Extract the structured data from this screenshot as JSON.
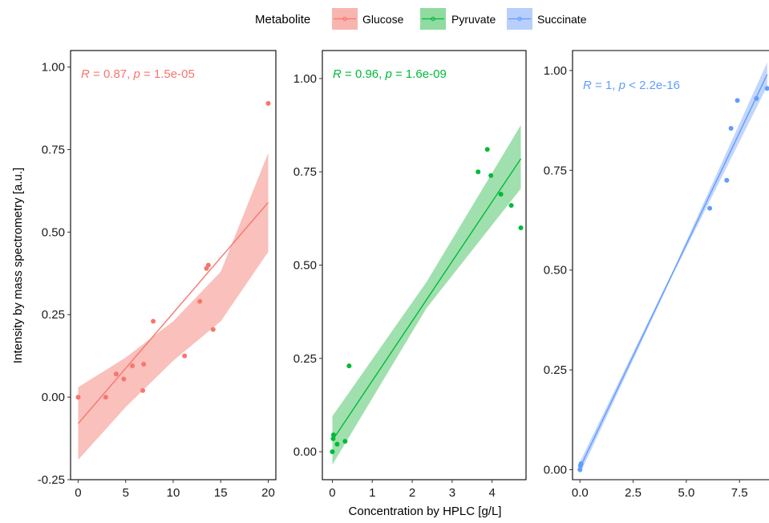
{
  "legend": {
    "title": "Metabolite",
    "items": [
      {
        "label": "Glucose",
        "color": "#F8766D",
        "fill": "#F8B5B0"
      },
      {
        "label": "Pyruvate",
        "color": "#00BA38",
        "fill": "#8FDBA0"
      },
      {
        "label": "Succinate",
        "color": "#619CFF",
        "fill": "#B7CFFA"
      }
    ]
  },
  "xlabel": "Concentration by HPLC [g/L]",
  "ylabel": "Intensity by mass spectrometry [a.u.]",
  "chart_data": [
    {
      "type": "scatter",
      "series": [
        {
          "name": "Glucose"
        }
      ],
      "color": "#F8766D",
      "band": "#F8B5B0",
      "annotation": {
        "r": "R = 0.87,",
        "p_label": "p",
        "p": "= 1.5e-05"
      },
      "xlim": [
        -0.8,
        20.8
      ],
      "ylim": [
        -0.25,
        1.05
      ],
      "xticks": [
        0,
        5,
        10,
        15,
        20
      ],
      "xtick_labels": [
        "0",
        "5",
        "10",
        "15",
        "20"
      ],
      "yticks": [
        -0.25,
        0,
        0.25,
        0.5,
        0.75,
        1.0
      ],
      "ytick_labels": [
        "-0.25",
        "0.00",
        "0.25",
        "0.50",
        "0.75",
        "1.00"
      ],
      "points": [
        [
          0.0,
          0.0
        ],
        [
          2.9,
          0.0
        ],
        [
          4.0,
          0.07
        ],
        [
          4.8,
          0.055
        ],
        [
          5.7,
          0.095
        ],
        [
          6.8,
          0.02
        ],
        [
          6.9,
          0.1
        ],
        [
          7.9,
          0.23
        ],
        [
          11.2,
          0.125
        ],
        [
          12.8,
          0.29
        ],
        [
          13.5,
          0.39
        ],
        [
          13.7,
          0.4
        ],
        [
          14.2,
          0.205
        ],
        [
          20.0,
          0.89
        ]
      ],
      "fit": {
        "x": [
          0,
          20
        ],
        "y": [
          -0.08,
          0.59
        ]
      },
      "ci": {
        "x": [
          0,
          5,
          10,
          15,
          20
        ],
        "lo": [
          -0.19,
          -0.03,
          0.11,
          0.23,
          0.44
        ],
        "hi": [
          0.03,
          0.12,
          0.23,
          0.38,
          0.74
        ]
      }
    },
    {
      "type": "scatter",
      "series": [
        {
          "name": "Pyruvate"
        }
      ],
      "color": "#00BA38",
      "band": "#8FDBA0",
      "annotation": {
        "r": "R = 0.96,",
        "p_label": "p",
        "p": "= 1.6e-09"
      },
      "xlim": [
        -0.25,
        4.85
      ],
      "ylim": [
        -0.075,
        1.075
      ],
      "xticks": [
        0,
        1,
        2,
        3,
        4
      ],
      "xtick_labels": [
        "0",
        "1",
        "2",
        "3",
        "4"
      ],
      "yticks": [
        0,
        0.25,
        0.5,
        0.75,
        1.0
      ],
      "ytick_labels": [
        "0.00",
        "0.25",
        "0.50",
        "0.75",
        "1.00"
      ],
      "points": [
        [
          0.0,
          0.0
        ],
        [
          0.02,
          0.035
        ],
        [
          0.03,
          0.045
        ],
        [
          0.12,
          0.02
        ],
        [
          0.32,
          0.028
        ],
        [
          0.42,
          0.23
        ],
        [
          3.65,
          0.75
        ],
        [
          3.88,
          0.81
        ],
        [
          3.97,
          0.74
        ],
        [
          4.22,
          0.69
        ],
        [
          4.48,
          0.66
        ],
        [
          4.72,
          0.6
        ]
      ],
      "fit": {
        "x": [
          0,
          4.72
        ],
        "y": [
          0.03,
          0.785
        ]
      },
      "ci": {
        "x": [
          0,
          2.36,
          4.72
        ],
        "lo": [
          -0.035,
          0.385,
          0.705
        ],
        "hi": [
          0.095,
          0.455,
          0.875
        ]
      }
    },
    {
      "type": "scatter",
      "series": [
        {
          "name": "Succinate"
        }
      ],
      "color": "#619CFF",
      "band": "#B7CFFA",
      "annotation": {
        "r": "R = 1,",
        "p_label": "p",
        "p": "< 2.2e-16"
      },
      "xlim": [
        -0.35,
        9.0
      ],
      "ylim": [
        -0.025,
        1.05
      ],
      "xticks": [
        0,
        2.5,
        5,
        7.5
      ],
      "xtick_labels": [
        "0.0",
        "2.5",
        "5.0",
        "7.5"
      ],
      "yticks": [
        0,
        0.25,
        0.5,
        0.75,
        1.0
      ],
      "ytick_labels": [
        "0.00",
        "0.25",
        "0.50",
        "0.75",
        "1.00"
      ],
      "points": [
        [
          0.0,
          0.0
        ],
        [
          0.02,
          0.01
        ],
        [
          0.05,
          0.015
        ],
        [
          6.1,
          0.655
        ],
        [
          6.9,
          0.725
        ],
        [
          7.1,
          0.855
        ],
        [
          7.4,
          0.925
        ],
        [
          8.3,
          0.93
        ],
        [
          8.8,
          0.955
        ]
      ],
      "fit": {
        "x": [
          0,
          8.8
        ],
        "y": [
          0.005,
          0.99
        ]
      },
      "ci": {
        "x": [
          0,
          4.4,
          8.8
        ],
        "lo": [
          -0.01,
          0.492,
          0.96
        ],
        "hi": [
          0.02,
          0.502,
          1.02
        ]
      }
    }
  ]
}
